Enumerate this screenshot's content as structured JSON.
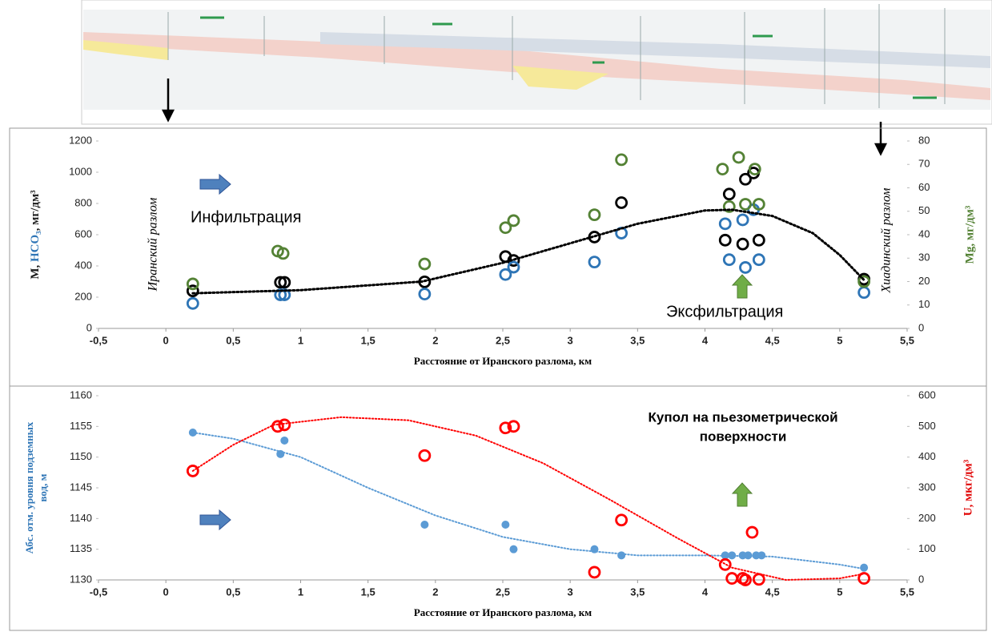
{
  "chart_data": [
    {
      "type": "scatter",
      "x_label": "Расстояние от Иранского разлома, км",
      "y_label": [
        {
          "text": "M, ",
          "color": "#1a1a1a"
        },
        {
          "text": "HCO₃",
          "color": "#2e75b6"
        },
        {
          "text": ", мг/дм³",
          "color": "#1a1a1a"
        }
      ],
      "y2_label": "Mg, мг/дм³",
      "y2_label_color": "#548235",
      "annotations": [
        "Иранский разлом",
        "Хиадинский разлом",
        "Инфильтрация",
        "Эксфильтрация"
      ],
      "xlim": [
        -0.5,
        5.5
      ],
      "xticks": [
        {
          "value": -0.5,
          "label": "-0,5"
        },
        0,
        {
          "value": 0.5,
          "label": "0,5"
        },
        1,
        {
          "value": 1.5,
          "label": "1,5"
        },
        2,
        {
          "value": 2.5,
          "label": "2,5"
        },
        3,
        {
          "value": 3.5,
          "label": "3,5"
        },
        4,
        {
          "value": 4.5,
          "label": "4,5"
        },
        5,
        {
          "value": 5.5,
          "label": "5,5"
        }
      ],
      "ylim": [
        0,
        1200
      ],
      "yticks": [
        0,
        200,
        400,
        600,
        800,
        1000,
        1200
      ],
      "y2lim": [
        0,
        80
      ],
      "y2ticks": [
        0,
        10,
        20,
        30,
        40,
        50,
        60,
        70,
        80
      ],
      "series": [
        {
          "color": "#000000",
          "marker": "open",
          "x": [
            0.2,
            0.85,
            0.88,
            1.92,
            2.52,
            2.58,
            3.18,
            3.38,
            4.15,
            4.18,
            4.28,
            4.3,
            4.36,
            4.4,
            5.18
          ],
          "values": [
            240,
            295,
            295,
            298,
            460,
            435,
            585,
            805,
            565,
            860,
            540,
            955,
            995,
            565,
            315
          ]
        },
        {
          "color": "#2e75b6",
          "marker": "open",
          "x": [
            0.2,
            0.85,
            0.88,
            1.92,
            2.52,
            2.58,
            3.18,
            3.38,
            4.15,
            4.18,
            4.28,
            4.3,
            4.36,
            4.4,
            5.18
          ],
          "values": [
            160,
            215,
            215,
            220,
            345,
            392,
            425,
            610,
            670,
            440,
            695,
            390,
            760,
            440,
            230
          ]
        },
        {
          "color": "#548235",
          "marker": "open",
          "axis": "y2",
          "x": [
            0.2,
            0.83,
            0.87,
            1.92,
            2.52,
            2.58,
            3.18,
            3.38,
            4.13,
            4.18,
            4.25,
            4.3,
            4.37,
            4.4,
            5.18
          ],
          "values": [
            19,
            33,
            32,
            27.5,
            43,
            46,
            48.5,
            72,
            68,
            52,
            73,
            53,
            68,
            53,
            20
          ]
        },
        {
          "color": "#000000",
          "marker": "dotted",
          "x": [
            0.2,
            1,
            1.9,
            2.5,
            3,
            3.5,
            4,
            4.2,
            4.5,
            4.8,
            5,
            5.18
          ],
          "values": [
            225,
            245,
            300,
            420,
            545,
            670,
            755,
            760,
            720,
            610,
            470,
            310
          ]
        }
      ]
    },
    {
      "type": "scatter",
      "x_label": "Расстояние от Иранского разлома, км",
      "y_label": [
        "Абс. отм. уровня подземных",
        "вод, м"
      ],
      "y_label_color": "#2e75b6",
      "y2_label": "U, мкг/дм³",
      "y2_label_color": "#e00000",
      "annotations": [
        "Купол на пьезометрической",
        "поверхности"
      ],
      "xlim": [
        -0.5,
        5.5
      ],
      "xticks": [
        {
          "value": -0.5,
          "label": "-0,5"
        },
        0,
        {
          "value": 0.5,
          "label": "0,5"
        },
        1,
        {
          "value": 1.5,
          "label": "1,5"
        },
        2,
        {
          "value": 2.5,
          "label": "2,5"
        },
        3,
        {
          "value": 3.5,
          "label": "3,5"
        },
        4,
        {
          "value": 4.5,
          "label": "4,5"
        },
        5,
        {
          "value": 5.5,
          "label": "5,5"
        }
      ],
      "ylim": [
        1130,
        1160
      ],
      "yticks": [
        1130,
        1135,
        1140,
        1145,
        1150,
        1155,
        1160
      ],
      "y2lim": [
        0,
        600
      ],
      "y2ticks": [
        0,
        100,
        200,
        300,
        400,
        500,
        600
      ],
      "series": [
        {
          "color": "#5b9bd5",
          "marker": "filled",
          "x": [
            0.2,
            0.85,
            0.88,
            1.92,
            2.52,
            2.58,
            3.18,
            3.38,
            4.15,
            4.2,
            4.28,
            4.32,
            4.38,
            4.42,
            5.18
          ],
          "values": [
            1154,
            1150.5,
            1152.7,
            1139,
            1139,
            1135,
            1135,
            1134,
            1134,
            1134,
            1134,
            1134,
            1134,
            1134,
            1132
          ]
        },
        {
          "color": "#ff0000",
          "marker": "open",
          "axis": "y2",
          "x": [
            0.2,
            0.83,
            0.88,
            1.92,
            2.52,
            2.58,
            3.18,
            3.38,
            4.15,
            4.2,
            4.28,
            4.3,
            4.35,
            4.4,
            5.18
          ],
          "values": [
            355,
            500,
            505,
            405,
            495,
            500,
            25,
            195,
            50,
            5,
            5,
            0,
            155,
            2,
            5
          ]
        },
        {
          "color": "#5b9bd5",
          "marker": "dotted",
          "x": [
            0.2,
            0.5,
            1,
            1.5,
            2,
            2.5,
            3,
            3.5,
            4,
            4.5,
            5,
            5.18
          ],
          "values": [
            1154,
            1153,
            1150,
            1145,
            1140.5,
            1137,
            1135,
            1134,
            1134,
            1133.8,
            1132.5,
            1131.8
          ]
        },
        {
          "color": "#ff0000",
          "marker": "dotted",
          "axis": "y2",
          "x": [
            0.2,
            0.5,
            0.8,
            1.3,
            1.8,
            2.3,
            2.8,
            3.3,
            3.8,
            4.2,
            4.6,
            5,
            5.18
          ],
          "values": [
            355,
            440,
            505,
            530,
            520,
            470,
            380,
            260,
            135,
            40,
            0,
            5,
            20
          ]
        }
      ]
    }
  ]
}
